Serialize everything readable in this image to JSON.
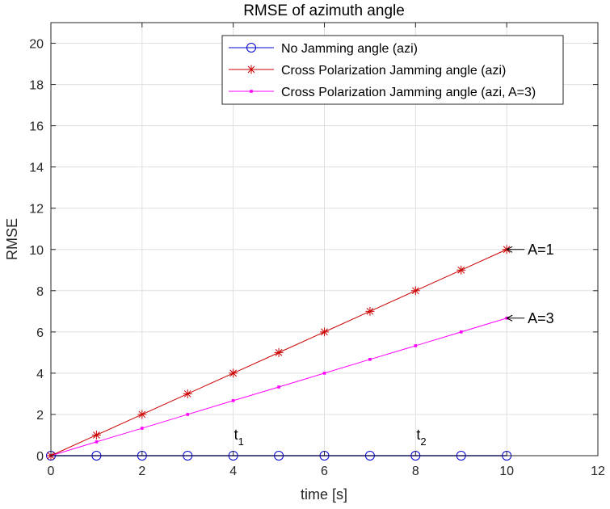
{
  "chart_data": {
    "type": "line",
    "title": "RMSE of azimuth angle",
    "xlabel": "time [s]",
    "ylabel": "RMSE",
    "xlim": [
      0,
      12
    ],
    "ylim": [
      0,
      21
    ],
    "xticks": [
      0,
      2,
      4,
      6,
      8,
      10,
      12
    ],
    "yticks": [
      0,
      2,
      4,
      6,
      8,
      10,
      12,
      14,
      16,
      18,
      20
    ],
    "grid": true,
    "legend_position": "top-right",
    "x": [
      0,
      1,
      2,
      3,
      4,
      5,
      6,
      7,
      8,
      9,
      10
    ],
    "series": [
      {
        "name": "No Jamming angle (azi)",
        "color": "#0000cc",
        "marker": "circle",
        "values": [
          0,
          0,
          0,
          0,
          0,
          0,
          0,
          0,
          0,
          0,
          0
        ]
      },
      {
        "name": "Cross Polarization Jamming angle (azi)",
        "color": "#cc0000",
        "marker": "asterisk",
        "values": [
          0,
          1,
          2,
          3,
          4,
          5,
          6,
          7,
          8,
          9,
          10
        ]
      },
      {
        "name": "Cross Polarization Jamming angle (azi, A=3)",
        "color": "#ff00ff",
        "marker": "dot",
        "values": [
          0,
          0.67,
          1.33,
          2.0,
          2.67,
          3.33,
          4.0,
          4.67,
          5.33,
          6.0,
          6.67
        ]
      }
    ],
    "annotations": [
      {
        "text": "A=1",
        "x": 10,
        "y": 10
      },
      {
        "text": "A=3",
        "x": 10,
        "y": 6.67
      },
      {
        "text": "t",
        "subscript": "1",
        "x": 4,
        "y": 0
      },
      {
        "text": "t",
        "subscript": "2",
        "x": 8,
        "y": 0
      }
    ]
  }
}
